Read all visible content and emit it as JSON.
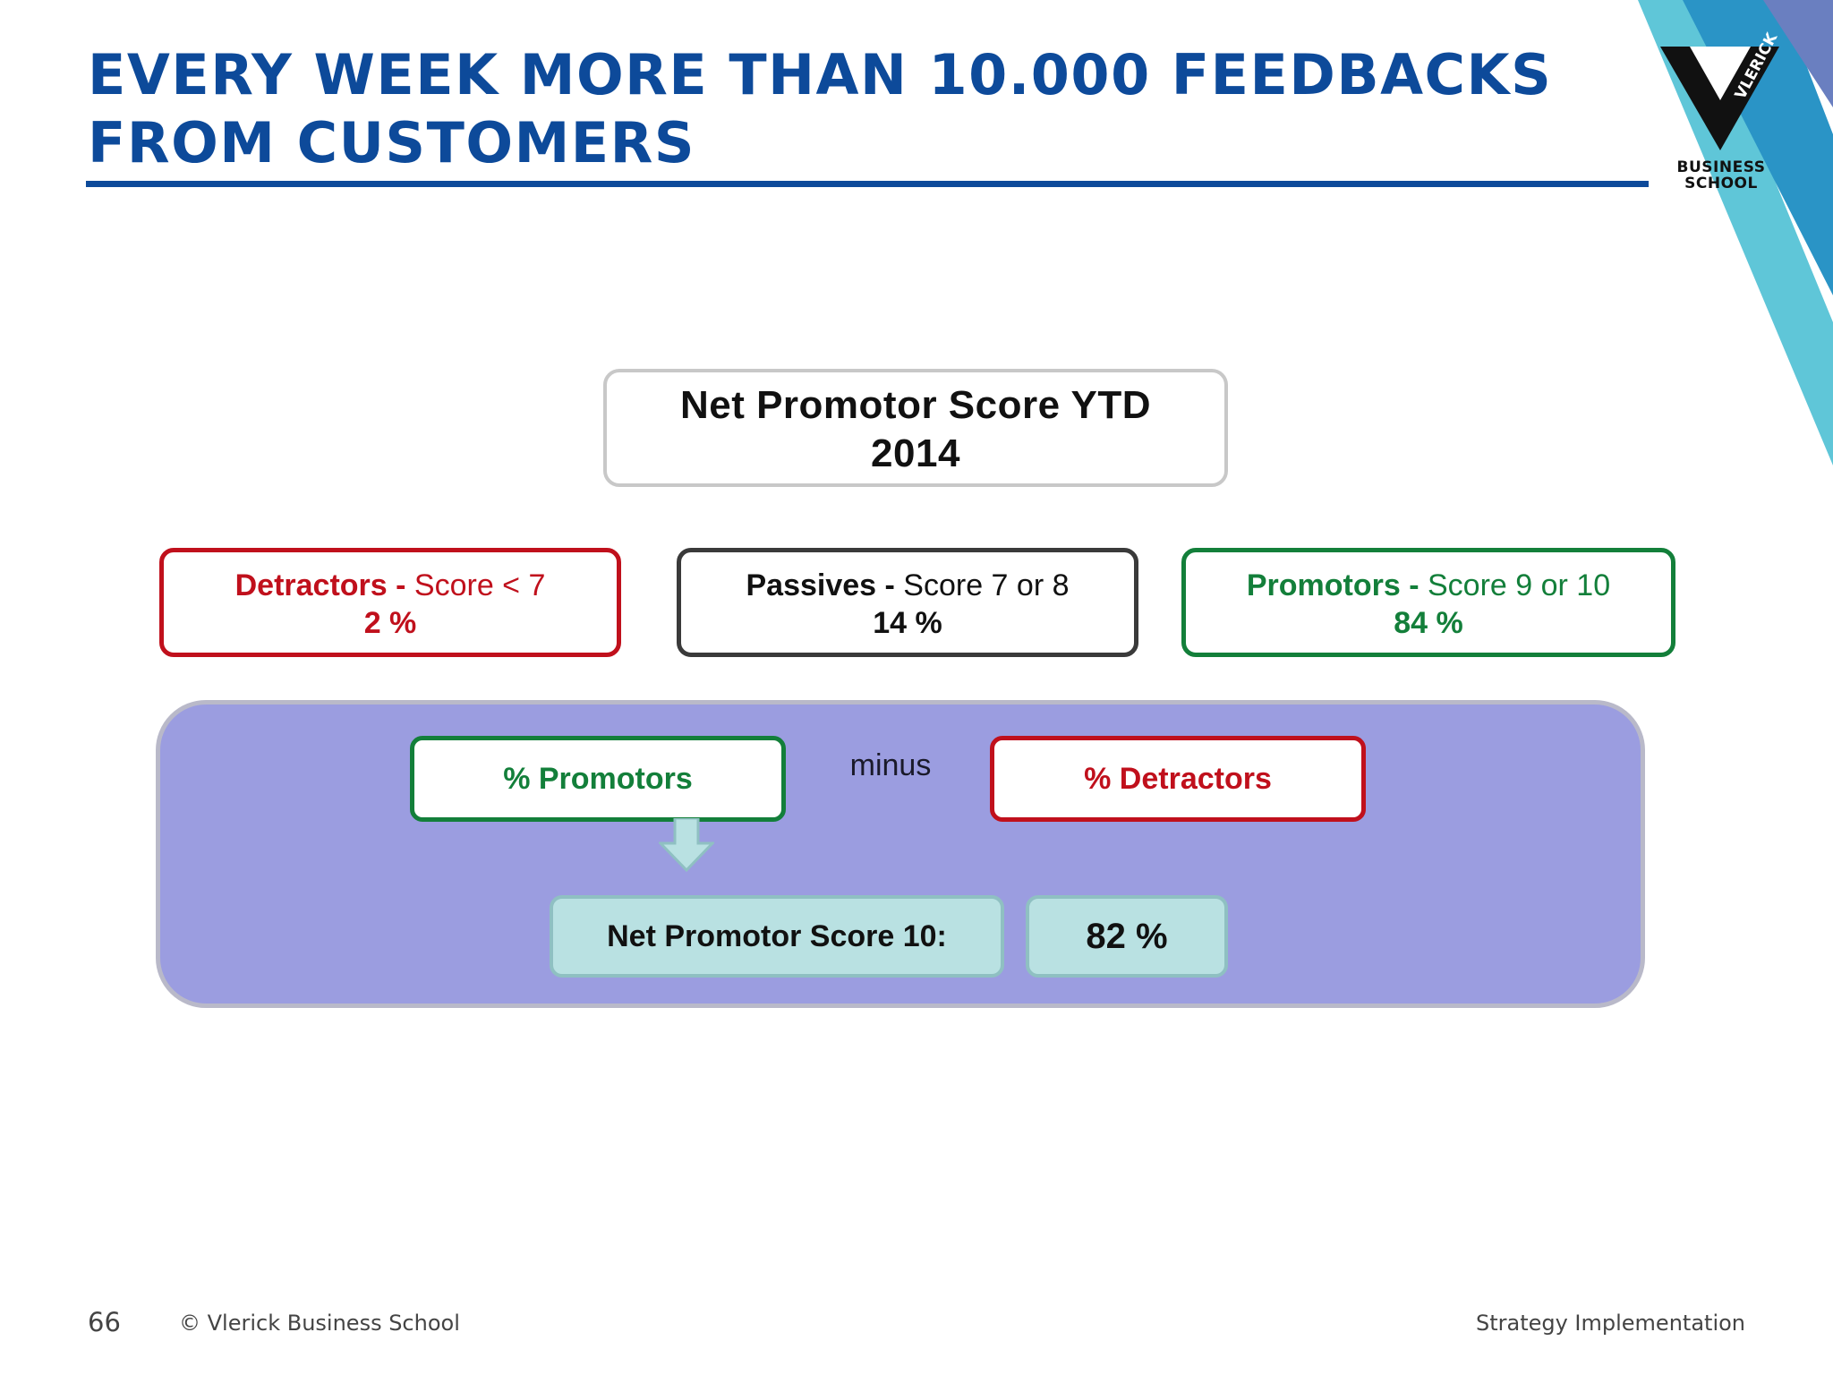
{
  "slide": {
    "title_line1": "EVERY WEEK MORE THAN 10.000 FEEDBACKS",
    "title_line2": "FROM CUSTOMERS"
  },
  "logo": {
    "mark_text": "VLERICK",
    "name_line1": "BUSINESS",
    "name_line2": "SCHOOL"
  },
  "nps": {
    "title_line1": "Net Promotor Score YTD",
    "title_line2": "2014"
  },
  "categories": [
    {
      "name": "Detractors",
      "separator": " - ",
      "rule": "Score < 7",
      "percent": "2 %",
      "color": "#c0101c"
    },
    {
      "name": "Passives",
      "separator": " - ",
      "rule": "Score 7 or 8",
      "percent": "14 %",
      "color": "#111111"
    },
    {
      "name": "Promotors",
      "separator": " - ",
      "rule": "Score 9 or 10",
      "percent": "84 %",
      "color": "#137f3a"
    }
  ],
  "formula": {
    "left_term": "%  Promotors",
    "operator": "minus",
    "right_term": "%  Detractors",
    "result_label": "Net Promotor Score 10:",
    "result_value": "82 %",
    "panel_color": "#9b9de0"
  },
  "footer": {
    "page_number": "66",
    "copyright": "© Vlerick Business School",
    "course": "Strategy Implementation"
  }
}
